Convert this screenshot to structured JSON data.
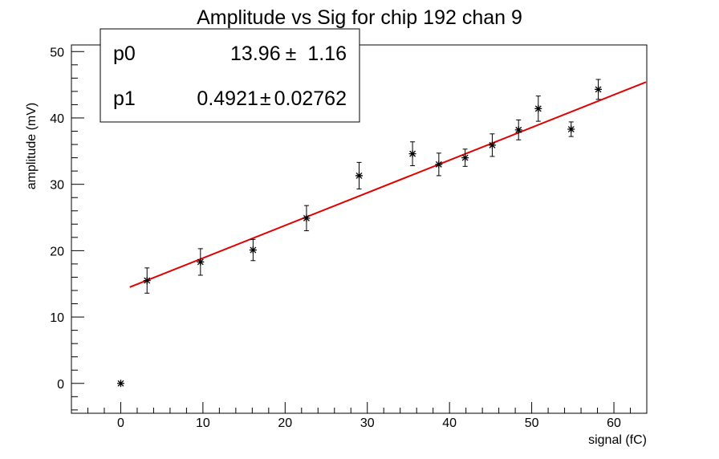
{
  "chart_data": {
    "type": "scatter",
    "title": "Amplitude vs Sig for chip 192 chan 9",
    "xlabel": "signal (fC)",
    "ylabel": "amplitude (mV)",
    "xlim": [
      -6,
      64
    ],
    "ylim": [
      -4.5,
      51
    ],
    "x_ticks": [
      0,
      10,
      20,
      30,
      40,
      50,
      60
    ],
    "y_ticks": [
      0,
      10,
      20,
      30,
      40,
      50
    ],
    "grid": false,
    "points": [
      {
        "x": 0.0,
        "y": 0.0,
        "err": 0.0
      },
      {
        "x": 3.2,
        "y": 15.5,
        "err": 1.9
      },
      {
        "x": 9.7,
        "y": 18.3,
        "err": 2.0
      },
      {
        "x": 16.1,
        "y": 20.1,
        "err": 1.6
      },
      {
        "x": 22.6,
        "y": 24.9,
        "err": 1.9
      },
      {
        "x": 29.0,
        "y": 31.3,
        "err": 2.0
      },
      {
        "x": 35.5,
        "y": 34.6,
        "err": 1.8
      },
      {
        "x": 38.7,
        "y": 33.0,
        "err": 1.7
      },
      {
        "x": 41.9,
        "y": 34.0,
        "err": 1.3
      },
      {
        "x": 45.2,
        "y": 35.9,
        "err": 1.7
      },
      {
        "x": 48.4,
        "y": 38.2,
        "err": 1.5
      },
      {
        "x": 50.8,
        "y": 41.4,
        "err": 1.9
      },
      {
        "x": 54.8,
        "y": 38.3,
        "err": 1.1
      },
      {
        "x": 58.1,
        "y": 44.3,
        "err": 1.5
      }
    ],
    "fit": {
      "x_start": 1.1,
      "x_end": 63.9,
      "color": "#e00000",
      "params": [
        {
          "name": "p0",
          "value": "13.96",
          "error": "1.16",
          "coef": 13.96
        },
        {
          "name": "p1",
          "value": "0.4921",
          "error": "0.02762",
          "coef": 0.4921
        }
      ]
    },
    "stats_box_position": "top-left"
  }
}
